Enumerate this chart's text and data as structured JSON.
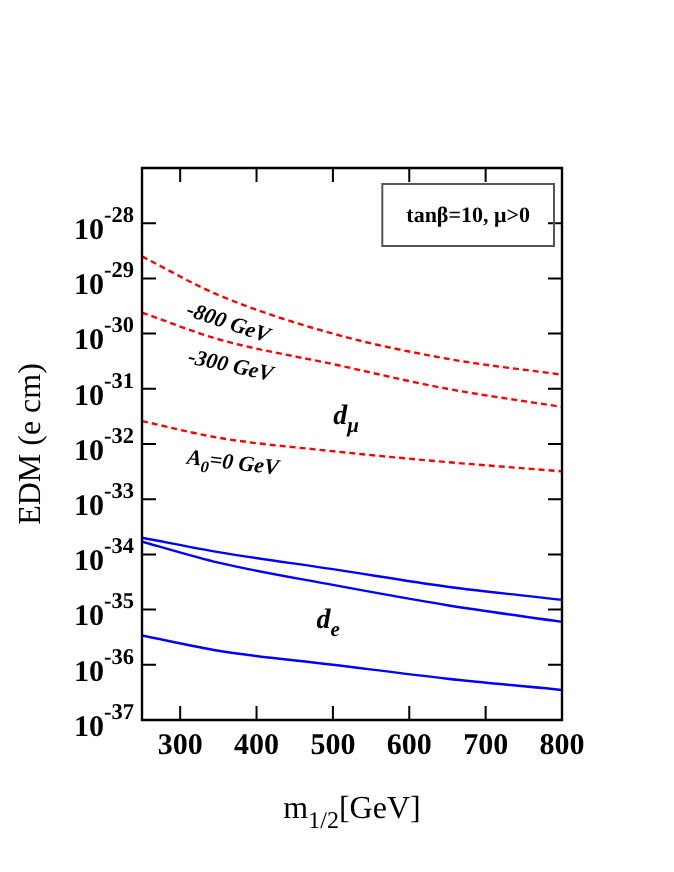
{
  "chart_data": {
    "type": "line",
    "xlabel": "m$_{1/2}$[GeV]",
    "ylabel": "EDM (e cm)",
    "x": [
      250,
      350,
      500,
      650,
      800
    ],
    "series": [
      {
        "name": "-800 GeV",
        "color": "#ff0000",
        "line_style": "dashed",
        "values": [
          2.5e-29,
          5e-30,
          1e-30,
          3.5e-31,
          1.8e-31
        ]
      },
      {
        "name": "-300 GeV",
        "color": "#ff0000",
        "line_style": "dashed",
        "values": [
          2.4e-30,
          7.9e-31,
          2.8e-31,
          1e-31,
          4.7e-32
        ]
      },
      {
        "name": "A$_{0}$=0 GeV",
        "color": "#ff0000",
        "line_style": "dashed",
        "values": [
          2.6e-32,
          1.3e-32,
          7.4e-33,
          4.7e-33,
          3.2e-33
        ]
      },
      {
        "color": "#0000ff",
        "line_style": "solid",
        "values": [
          2e-34,
          1.1e-34,
          5.4e-35,
          2.6e-35,
          1.5e-35
        ]
      },
      {
        "color": "#0000ff",
        "line_style": "solid",
        "values": [
          1.7e-34,
          7.1e-35,
          2.8e-35,
          1.2e-35,
          6e-36
        ]
      },
      {
        "color": "#0000ff",
        "line_style": "solid",
        "values": [
          3.4e-36,
          1.8e-36,
          1e-36,
          5.6e-37,
          3.5e-37
        ]
      }
    ],
    "log": "y",
    "xlim": [
      250,
      800
    ],
    "xticks": [
      300,
      400,
      500,
      600,
      700,
      800
    ],
    "ylim": [
      1e-37,
      1e-27
    ],
    "yticks": [
      {
        "value": 1e-37,
        "label": "10$^{-37}$"
      },
      {
        "value": 1e-36,
        "label": "10$^{-36}$"
      },
      {
        "value": 1e-35,
        "label": "10$^{-35}$"
      },
      {
        "value": 1e-34,
        "label": "10$^{-34}$"
      },
      {
        "value": 1e-33,
        "label": "10$^{-33}$"
      },
      {
        "value": 1e-32,
        "label": "10$^{-32}$"
      },
      {
        "value": 1e-31,
        "label": "10$^{-31}$"
      },
      {
        "value": 1e-30,
        "label": "10$^{-30}$"
      },
      {
        "value": 1e-29,
        "label": "10$^{-29}$"
      },
      {
        "value": 1e-28,
        "label": "10$^{-28}$"
      }
    ],
    "grid": false,
    "legend": false,
    "marker": "none",
    "annotations": [
      "tanβ=10, μ>0",
      "d$_{μ}$",
      "d$_{e}$"
    ]
  }
}
